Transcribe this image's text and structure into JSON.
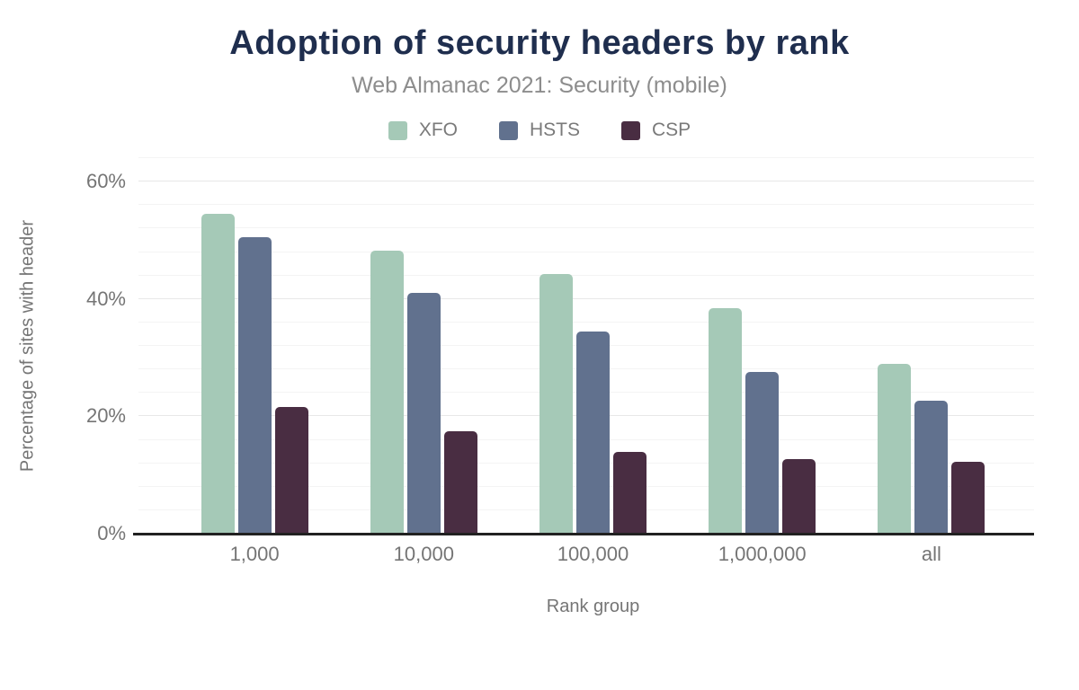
{
  "chart_data": {
    "type": "bar",
    "title": "Adoption of security headers by rank",
    "subtitle": "Web Almanac 2021: Security (mobile)",
    "xlabel": "Rank group",
    "ylabel": "Percentage of sites with header",
    "categories": [
      "1,000",
      "10,000",
      "100,000",
      "1,000,000",
      "all"
    ],
    "series": [
      {
        "name": "XFO",
        "color": "#a5c9b7",
        "values": [
          54.5,
          48.2,
          44.3,
          38.5,
          28.9
        ]
      },
      {
        "name": "HSTS",
        "color": "#61718e",
        "values": [
          50.6,
          41.0,
          34.4,
          27.6,
          22.7
        ]
      },
      {
        "name": "CSP",
        "color": "#492d42",
        "values": [
          21.6,
          17.4,
          14.0,
          12.7,
          12.2
        ]
      }
    ],
    "ylim": [
      0,
      64
    ],
    "yticks": [
      0,
      20,
      40,
      60
    ],
    "ytick_suffix": "%",
    "minor_grid_step": 4,
    "grid": true,
    "legend_position": "top"
  },
  "colors": {
    "title": "#1f2e4e",
    "subtitle": "#8d8d8d",
    "axis_text": "#757575",
    "axis_line": "#212121",
    "major_grid": "#e8e8e8",
    "minor_grid": "#f4f4f4",
    "background": "#ffffff"
  }
}
